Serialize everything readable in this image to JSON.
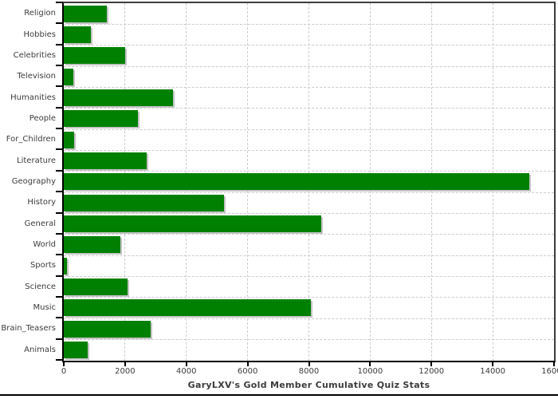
{
  "title": "GaryLXV's Gold Member Cumulative Quiz Stats",
  "colors": {
    "bar": "#008000",
    "bar_shadow": "#c4c4c4",
    "grid": "#cccccc",
    "axis": "#000000",
    "frame": "#3c3c3c",
    "text": "#3c3c3c",
    "background": "#ffffff"
  },
  "chart_data": {
    "type": "bar",
    "orientation": "horizontal",
    "title": "GaryLXV's Gold Member Cumulative Quiz Stats",
    "categories": [
      "Religion",
      "Hobbies",
      "Celebrities",
      "Television",
      "Humanities",
      "People",
      "For_Children",
      "Literature",
      "Geography",
      "History",
      "General",
      "World",
      "Sports",
      "Science",
      "Music",
      "Brain_Teasers",
      "Animals"
    ],
    "values": [
      1400,
      880,
      2000,
      310,
      3560,
      2420,
      340,
      2700,
      15200,
      5230,
      8400,
      1850,
      100,
      2080,
      8070,
      2840,
      780
    ],
    "xlabel": "",
    "ylabel": "",
    "xlim": [
      0,
      16000
    ],
    "x_ticks": [
      0,
      2000,
      4000,
      6000,
      8000,
      10000,
      12000,
      14000,
      16000
    ],
    "x_tick_labels": [
      "0",
      "2000",
      "4000",
      "6000",
      "8000",
      "10000",
      "12000",
      "14000",
      "16000"
    ],
    "grid": "dashed, vertical at x ticks and horizontal at category boundaries",
    "legend": "none",
    "title_position": "bottom"
  }
}
